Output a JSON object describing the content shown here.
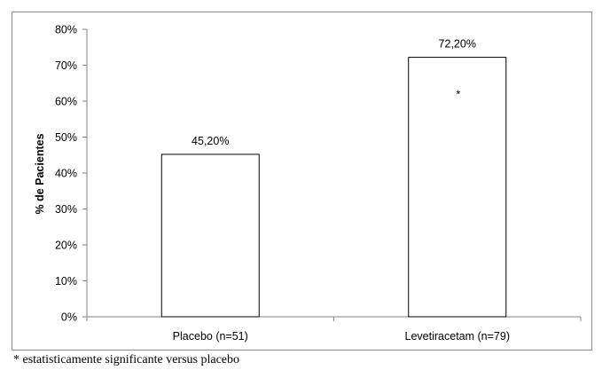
{
  "chart_data": {
    "type": "bar",
    "categories": [
      "Placebo (n=51)",
      "Levetiracetam (n=79)"
    ],
    "values": [
      45.2,
      72.2
    ],
    "data_labels": [
      "45,20%",
      "72,20%"
    ],
    "ylabel": "% de Pacientes",
    "xlabel": "",
    "ylim": [
      0,
      80
    ],
    "yticks": [
      0,
      10,
      20,
      30,
      40,
      50,
      60,
      70,
      80
    ],
    "ytick_labels": [
      "0%",
      "10%",
      "20%",
      "30%",
      "40%",
      "50%",
      "60%",
      "70%",
      "80%"
    ],
    "annotations": [
      {
        "category": "Levetiracetam (n=79)",
        "text": "*"
      }
    ],
    "grid": false,
    "legend": "none",
    "bar_fill": "#ffffff",
    "bar_stroke": "#000000"
  },
  "footnote": "* estatisticamente significante versus placebo"
}
